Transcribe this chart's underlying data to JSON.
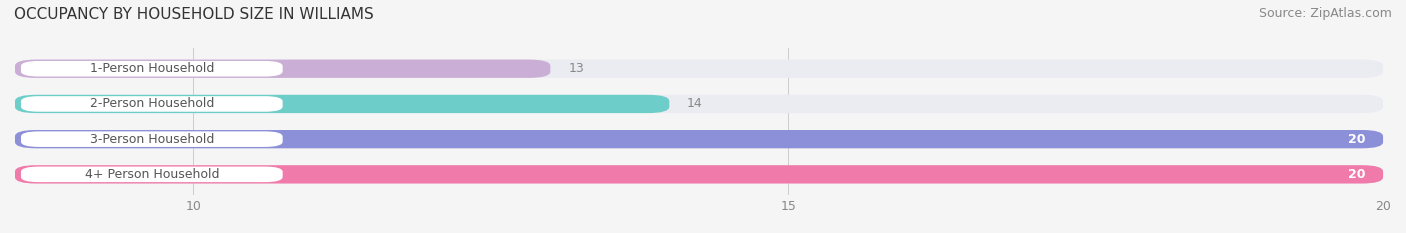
{
  "title": "OCCUPANCY BY HOUSEHOLD SIZE IN WILLIAMS",
  "source": "Source: ZipAtlas.com",
  "categories": [
    "1-Person Household",
    "2-Person Household",
    "3-Person Household",
    "4+ Person Household"
  ],
  "values": [
    13,
    14,
    20,
    20
  ],
  "bar_colors": [
    "#caaed6",
    "#6dcdc8",
    "#8b90d8",
    "#f07aaa"
  ],
  "bar_bg_color": "#ebebf2",
  "xlim": [
    0,
    20
  ],
  "xlim_start": 8.5,
  "xticks": [
    10,
    15,
    20
  ],
  "label_color_inside": "#ffffff",
  "label_color_outside": "#888888",
  "title_fontsize": 11,
  "source_fontsize": 9,
  "tick_fontsize": 9,
  "bar_label_fontsize": 9,
  "category_fontsize": 9,
  "bar_label_color_dark": "#888888",
  "category_text_color": "#555555",
  "background_color": "#f5f5f5"
}
